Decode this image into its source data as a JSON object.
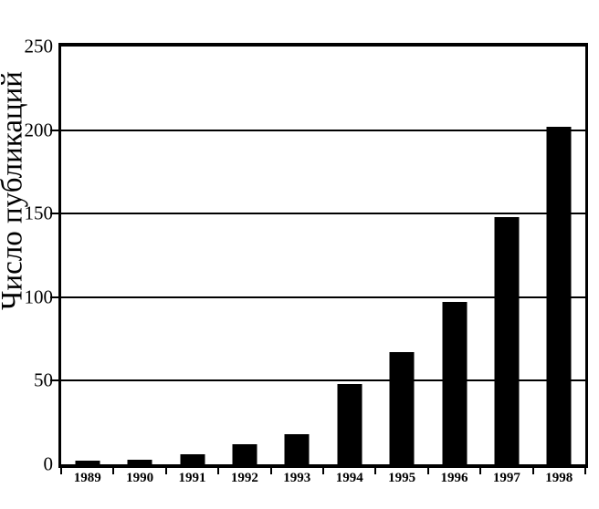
{
  "chart_data": {
    "type": "bar",
    "title": "",
    "ylabel": "Число публикаций",
    "xlabel": "",
    "categories": [
      "1989",
      "1990",
      "1991",
      "1992",
      "1993",
      "1994",
      "1995",
      "1996",
      "1997",
      "1998"
    ],
    "values": [
      2,
      3,
      6,
      12,
      18,
      48,
      67,
      97,
      148,
      202
    ],
    "ylim": [
      0,
      250
    ],
    "yticks": [
      0,
      50,
      100,
      150,
      200,
      250
    ],
    "grid": true,
    "legend": false,
    "bar_color": "#000000",
    "axis_color": "#000000",
    "background_color": "#ffffff"
  }
}
